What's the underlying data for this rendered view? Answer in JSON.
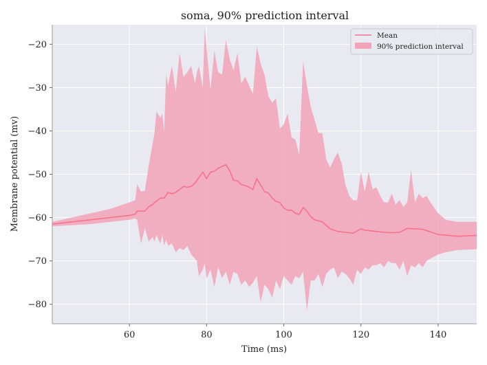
{
  "chart_data": {
    "type": "line",
    "title": "soma, 90% prediction interval",
    "xlabel": "Time (ms)",
    "ylabel": "Membrane potential (mv)",
    "xlim": [
      40,
      150
    ],
    "ylim": [
      -84.5,
      -15.5
    ],
    "xticks": [
      60,
      80,
      100,
      120,
      140
    ],
    "yticks": [
      -20,
      -30,
      -40,
      -50,
      -60,
      -70,
      -80
    ],
    "grid": true,
    "legend_position": "top-right",
    "colors": {
      "background": "#e9e9f1",
      "mean": "#f8718c",
      "interval": "#f2a3b7",
      "grid": "#ffffff"
    },
    "series": [
      {
        "name": "Mean",
        "kind": "line",
        "x": [
          40,
          50,
          55,
          60,
          61.5,
          62,
          64,
          65,
          66,
          67,
          68,
          69,
          70,
          71,
          72,
          73,
          74,
          75,
          76,
          77,
          78,
          79,
          80,
          81,
          82,
          83,
          84,
          85,
          86,
          87,
          88,
          89,
          90,
          91,
          92,
          93,
          94,
          95,
          96,
          97,
          98,
          99,
          100,
          101,
          102,
          103,
          104,
          105,
          106,
          107,
          108,
          110,
          112,
          114,
          116,
          118,
          120,
          121,
          124,
          126,
          128,
          130,
          132,
          134,
          136,
          140,
          145,
          150
        ],
        "y": [
          -61.5,
          -60.5,
          -60.0,
          -59.5,
          -59.2,
          -58.5,
          -58.5,
          -57.5,
          -57.0,
          -56.2,
          -55.5,
          -55.5,
          -54.2,
          -54.5,
          -54.2,
          -53.5,
          -52.8,
          -53.0,
          -52.8,
          -52.0,
          -50.8,
          -49.5,
          -51.0,
          -49.5,
          -49.3,
          -48.6,
          -48.2,
          -47.8,
          -49.2,
          -51.4,
          -51.5,
          -52.4,
          -52.6,
          -53.0,
          -53.5,
          -51.0,
          -52.5,
          -54.0,
          -54.3,
          -55.5,
          -56.3,
          -56.5,
          -57.8,
          -58.3,
          -58.3,
          -59.0,
          -59.3,
          -57.7,
          -58.5,
          -59.8,
          -60.5,
          -61.0,
          -62.6,
          -63.2,
          -63.4,
          -63.6,
          -62.6,
          -62.9,
          -63.2,
          -63.4,
          -63.5,
          -63.4,
          -62.5,
          -62.6,
          -62.7,
          -63.9,
          -64.3,
          -64.1
        ]
      },
      {
        "name": "90% prediction interval",
        "kind": "band",
        "x": [
          40,
          50,
          55,
          60,
          61.5,
          62,
          63,
          64,
          65,
          66,
          66.5,
          67,
          68,
          68.5,
          69,
          69.5,
          70,
          71,
          72,
          73,
          74,
          75,
          76,
          77,
          77.5,
          78,
          79,
          79.5,
          80,
          81,
          82,
          83,
          84,
          85,
          86,
          87,
          88,
          89,
          90,
          91,
          92,
          93,
          94,
          95,
          96,
          97,
          98,
          99,
          100,
          101,
          102,
          103,
          104,
          105,
          106,
          107,
          108,
          109,
          110,
          111,
          112,
          113,
          114,
          115,
          116,
          117,
          118,
          119,
          120,
          121,
          122,
          123,
          124,
          125,
          126,
          127,
          128,
          129,
          130,
          131,
          132,
          133,
          134,
          135,
          136,
          137,
          138,
          140,
          142,
          145,
          150
        ],
        "upper": [
          -61.0,
          -59.0,
          -58.0,
          -56.5,
          -56.0,
          -52.3,
          -54.0,
          -53.8,
          -48.0,
          -43.0,
          -40.5,
          -35.5,
          -37.0,
          -36.0,
          -40.0,
          -27.0,
          -29.5,
          -25.0,
          -31.0,
          -22.0,
          -27.5,
          -26.5,
          -25.0,
          -29.0,
          -26.5,
          -25.0,
          -30.0,
          -16.5,
          -21.0,
          -30.5,
          -21.5,
          -26.5,
          -27.0,
          -19.0,
          -23.5,
          -26.0,
          -22.0,
          -29.0,
          -27.5,
          -29.5,
          -31.5,
          -20.5,
          -24.5,
          -27.0,
          -32.0,
          -33.5,
          -32.5,
          -39.5,
          -38.5,
          -36.0,
          -41.5,
          -42.0,
          -45.5,
          -24.0,
          -29.5,
          -34.5,
          -37.5,
          -40.5,
          -40.5,
          -46.5,
          -48.5,
          -46.5,
          -45.0,
          -47.5,
          -52.5,
          -55.0,
          -56.0,
          -56.0,
          -49.5,
          -54.0,
          -49.5,
          -53.5,
          -53.0,
          -55.0,
          -56.5,
          -56.5,
          -54.5,
          -57.0,
          -56.0,
          -57.5,
          -56.5,
          -49.0,
          -56.5,
          -54.5,
          -55.5,
          -55.0,
          -56.5,
          -59.0,
          -60.5,
          -61.0,
          -61.0
        ],
        "lower": [
          -62.0,
          -61.5,
          -61.0,
          -60.5,
          -60.2,
          -60.5,
          -66.0,
          -62.5,
          -65.5,
          -64.5,
          -65.5,
          -64.0,
          -66.0,
          -64.0,
          -66.5,
          -65.0,
          -66.5,
          -66.0,
          -68.0,
          -67.0,
          -67.5,
          -66.5,
          -68.5,
          -69.5,
          -70.0,
          -73.5,
          -72.0,
          -70.5,
          -74.0,
          -72.0,
          -76.0,
          -71.5,
          -74.0,
          -72.5,
          -75.5,
          -72.5,
          -73.0,
          -75.5,
          -74.5,
          -76.0,
          -75.0,
          -73.5,
          -79.5,
          -75.5,
          -76.5,
          -78.5,
          -74.5,
          -76.5,
          -73.5,
          -74.5,
          -75.5,
          -73.5,
          -74.0,
          -72.5,
          -81.5,
          -74.5,
          -74.5,
          -73.0,
          -76.0,
          -73.0,
          -72.0,
          -71.5,
          -74.0,
          -72.5,
          -73.0,
          -74.0,
          -75.5,
          -72.0,
          -73.0,
          -71.5,
          -72.0,
          -71.0,
          -71.0,
          -70.5,
          -71.5,
          -70.0,
          -70.5,
          -70.5,
          -72.0,
          -70.0,
          -73.5,
          -71.0,
          -71.5,
          -70.5,
          -71.5,
          -70.0,
          -69.5,
          -68.5,
          -68.0,
          -67.5,
          -67.3
        ]
      }
    ]
  }
}
